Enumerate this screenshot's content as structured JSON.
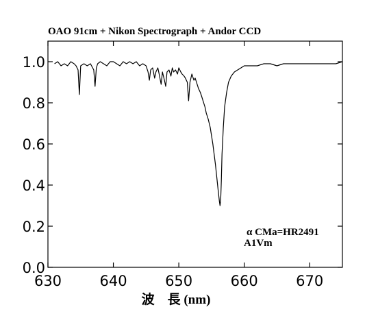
{
  "chart_data": {
    "type": "line",
    "title": "OAO 91cm + Nikon Spectrograph + Andor CCD",
    "xlabel": "波　長 (nm)",
    "ylabel": "",
    "xlim": [
      630,
      675
    ],
    "ylim": [
      0.0,
      1.1
    ],
    "xticks": [
      630,
      640,
      650,
      660,
      670
    ],
    "yticks": [
      0.0,
      0.2,
      0.4,
      0.6,
      0.8,
      1.0
    ],
    "xtick_labels": [
      "630",
      "640",
      "650",
      "660",
      "670"
    ],
    "ytick_labels": [
      "0.0",
      "0.2",
      "0.4",
      "0.6",
      "0.8",
      "1.0"
    ],
    "grid": false,
    "annotations": [
      "α CMa=HR2491",
      "A1Vm"
    ],
    "series": [
      {
        "color": "#000000",
        "x": [
          631.0,
          631.5,
          632.0,
          632.5,
          633.0,
          633.5,
          634.0,
          634.3,
          634.6,
          634.8,
          635.0,
          635.5,
          636.0,
          636.5,
          637.0,
          637.2,
          637.4,
          637.6,
          638.0,
          638.5,
          639.0,
          639.5,
          640.0,
          640.5,
          641.0,
          641.5,
          642.0,
          642.5,
          643.0,
          643.5,
          644.0,
          644.5,
          645.0,
          645.3,
          645.5,
          645.7,
          646.0,
          646.3,
          646.5,
          646.8,
          647.0,
          647.3,
          647.5,
          647.8,
          648.0,
          648.2,
          648.5,
          648.8,
          649.0,
          649.2,
          649.5,
          649.8,
          650.0,
          650.3,
          650.5,
          650.8,
          651.0,
          651.3,
          651.5,
          651.7,
          652.0,
          652.3,
          652.5,
          652.8,
          653.0,
          653.3,
          653.5,
          653.8,
          654.0,
          654.2,
          654.5,
          654.8,
          655.0,
          655.2,
          655.4,
          655.6,
          655.8,
          656.0,
          656.2,
          656.3,
          656.4,
          656.5,
          656.6,
          656.8,
          657.0,
          657.3,
          657.6,
          658.0,
          658.5,
          659.0,
          659.5,
          660.0,
          661.0,
          662.0,
          663.0,
          664.0,
          665.0,
          666.0,
          667.0,
          668.0,
          669.0,
          670.0,
          671.0,
          672.0,
          673.0,
          674.0,
          675.0
        ],
        "y": [
          0.99,
          1.0,
          0.98,
          0.99,
          0.98,
          1.0,
          0.99,
          0.98,
          0.96,
          0.84,
          0.98,
          0.99,
          0.98,
          0.99,
          0.96,
          0.88,
          0.97,
          0.99,
          1.0,
          0.99,
          0.98,
          1.0,
          1.0,
          0.99,
          0.98,
          1.0,
          0.99,
          1.0,
          0.99,
          1.0,
          0.98,
          0.99,
          0.98,
          0.95,
          0.91,
          0.96,
          0.97,
          0.92,
          0.95,
          0.97,
          0.94,
          0.89,
          0.95,
          0.91,
          0.88,
          0.95,
          0.96,
          0.93,
          0.97,
          0.95,
          0.96,
          0.94,
          0.97,
          0.95,
          0.94,
          0.93,
          0.92,
          0.9,
          0.81,
          0.9,
          0.94,
          0.91,
          0.92,
          0.89,
          0.87,
          0.85,
          0.83,
          0.8,
          0.78,
          0.75,
          0.72,
          0.68,
          0.64,
          0.6,
          0.55,
          0.5,
          0.44,
          0.38,
          0.32,
          0.3,
          0.33,
          0.42,
          0.55,
          0.68,
          0.78,
          0.85,
          0.9,
          0.93,
          0.95,
          0.96,
          0.97,
          0.98,
          0.98,
          0.98,
          0.99,
          0.99,
          0.98,
          0.99,
          0.99,
          0.99,
          0.99,
          0.99,
          0.99,
          0.99,
          0.99,
          0.99,
          1.0
        ]
      }
    ]
  }
}
